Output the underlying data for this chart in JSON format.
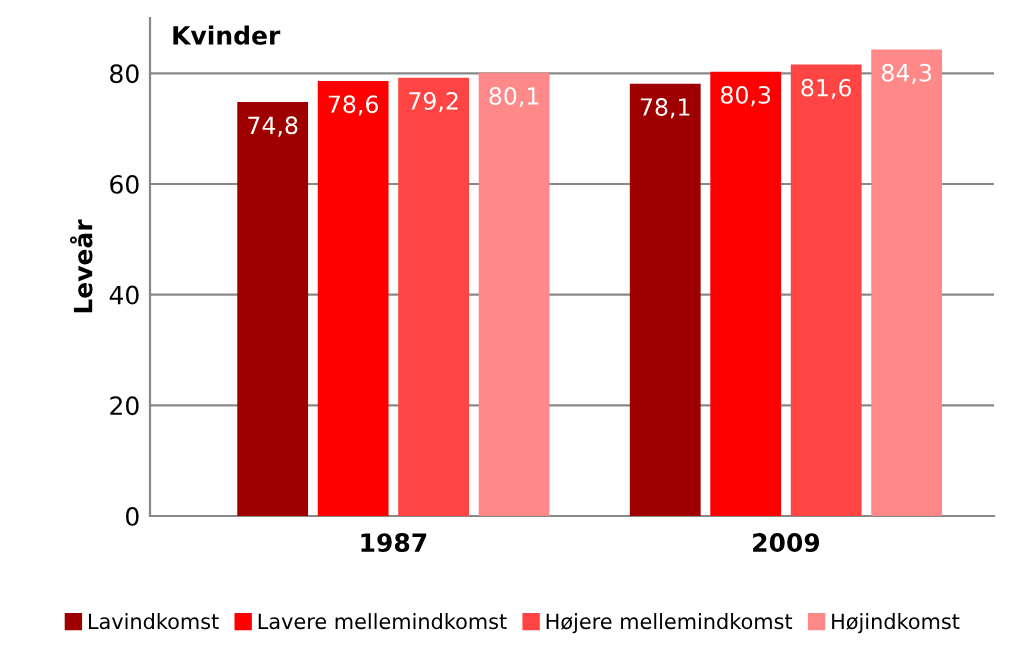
{
  "chart_data": {
    "type": "bar",
    "title": "Kvinder",
    "ylabel": "Leveår",
    "categories": [
      "1987",
      "2009"
    ],
    "series": [
      {
        "name": "Lavindkomst",
        "color": "#9e0000",
        "values": [
          74.8,
          78.1
        ],
        "value_labels": [
          "74,8",
          "78,1"
        ]
      },
      {
        "name": "Lavere mellemindkomst",
        "color": "#ff0000",
        "values": [
          78.6,
          80.3
        ],
        "value_labels": [
          "78,6",
          "80,3"
        ]
      },
      {
        "name": "Højere mellemindkomst",
        "color": "#ff4444",
        "values": [
          79.2,
          81.6
        ],
        "value_labels": [
          "79,2",
          "81,6"
        ]
      },
      {
        "name": "Højindkomst",
        "color": "#ff8888",
        "values": [
          80.1,
          84.3
        ],
        "value_labels": [
          "80,1",
          "84,3"
        ]
      }
    ],
    "ylim": [
      0,
      90
    ],
    "yticks": [
      0,
      20,
      40,
      60,
      80
    ],
    "grid": "y",
    "legend": "bottom"
  }
}
